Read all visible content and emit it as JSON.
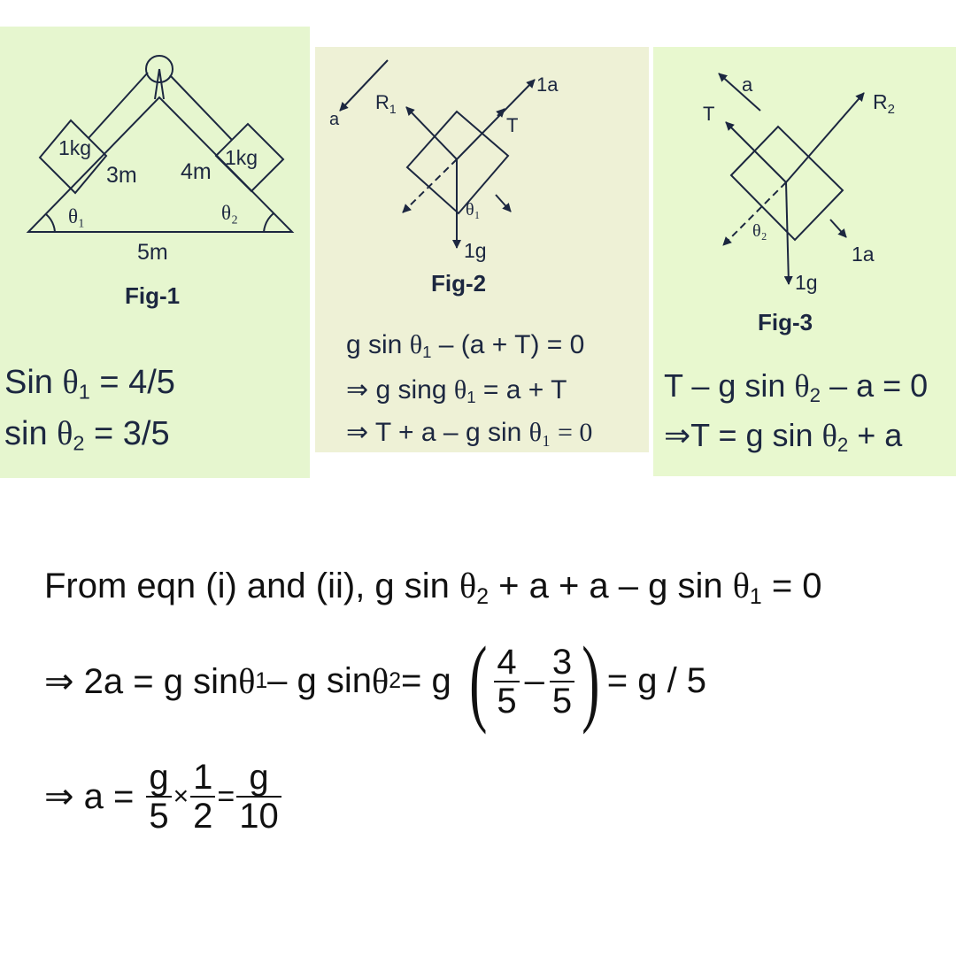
{
  "fig1": {
    "block_left": "1kg",
    "block_right": "1kg",
    "side_left": "3m",
    "side_right": "4m",
    "base": "5m",
    "angle_left": "θ₁",
    "angle_right": "θ₂",
    "caption": "Fig-1",
    "eq1_prefix": "Sin ",
    "eq1_theta": "θ",
    "eq1_sub": "1",
    "eq1_rest": " = 4/5",
    "eq2_prefix": "sin ",
    "eq2_theta": "θ",
    "eq2_sub": "2",
    "eq2_rest": " = 3/5"
  },
  "fig2": {
    "label_a": "a",
    "label_r1": "R",
    "label_r1_sub": "1",
    "label_1a": "1a",
    "label_t": "T",
    "label_theta": "θ₁",
    "label_1g": "1g",
    "caption": "Fig-2",
    "line1_a": "g sin ",
    "line1_theta": "θ",
    "line1_sub": "1",
    "line1_b": " – (a + T) = 0",
    "line2_a": "⇒ g sing ",
    "line2_theta": "θ",
    "line2_sub": "1",
    "line2_b": " = a + T",
    "line3_a": "⇒ T + a – g sin ",
    "line3_b": "θ₁ = 0"
  },
  "fig3": {
    "label_a": "a",
    "label_t": "T",
    "label_r2": "R",
    "label_r2_sub": "2",
    "label_theta": "θ₂",
    "label_1a": "1a",
    "label_1g": "1g",
    "caption": "Fig-3",
    "line1_a": "T – g sin ",
    "line1_theta": "θ",
    "line1_sub": "2",
    "line1_b": " – a = 0",
    "line2_a": "⇒T = g sin ",
    "line2_theta": "θ",
    "line2_sub": "2",
    "line2_b": " + a"
  },
  "bottom": {
    "line1_a": "From eqn (i) and (ii), g sin ",
    "line1_theta": "θ",
    "line1_sub": "2",
    "line1_b": " + a + a – g sin ",
    "line1_theta2": "θ",
    "line1_sub2": "1",
    "line1_c": " = 0",
    "line2_a": "⇒ 2a = g sin ",
    "line2_theta": "θ",
    "line2_sub": "1",
    "line2_b": " – g sin ",
    "line2_theta2": "θ",
    "line2_sub2": "2",
    "line2_c": " = g",
    "frac1_num": "4",
    "frac1_den": "5",
    "minus": "–",
    "frac2_num": "3",
    "frac2_den": "5",
    "line2_d": "= g / 5",
    "line3_a": "⇒ a = ",
    "frac3_num": "g",
    "frac3_den": "5",
    "times": "×",
    "frac4_num": "1",
    "frac4_den": "2",
    "equals": "=",
    "frac5_num": "g",
    "frac5_den": "10"
  }
}
